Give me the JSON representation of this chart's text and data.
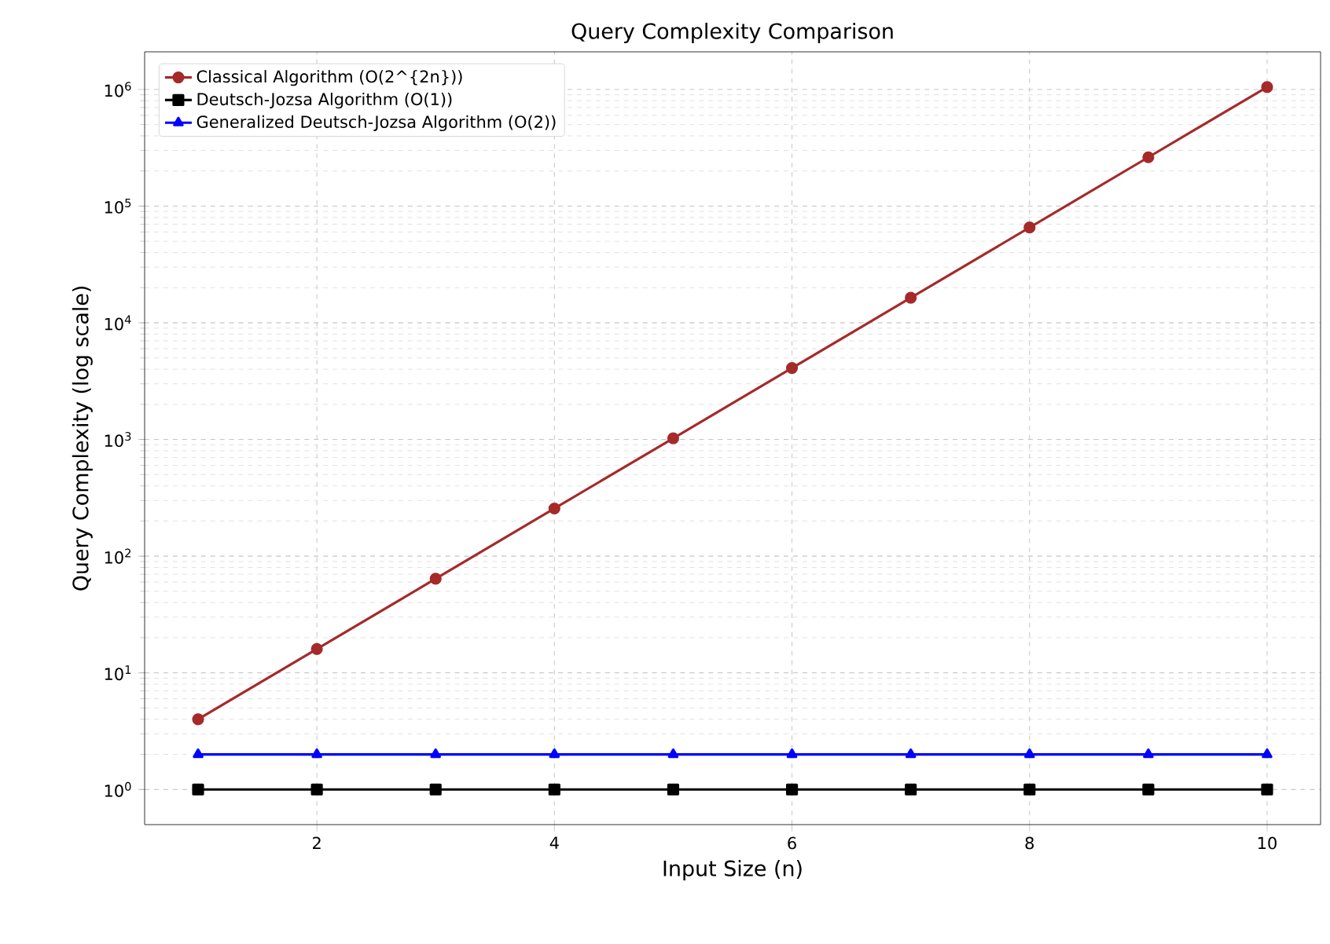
{
  "chart_data": {
    "type": "line",
    "title": "Query Complexity Comparison",
    "xlabel": "Input Size (n)",
    "ylabel": "Query Complexity (log scale)",
    "x": [
      1,
      2,
      3,
      4,
      5,
      6,
      7,
      8,
      9,
      10
    ],
    "series": [
      {
        "name": "Classical Algorithm (O(2^{2n}))",
        "color": "#a52a2a",
        "marker": "circle",
        "values": [
          4,
          16,
          64,
          256,
          1024,
          4096,
          16384,
          65536,
          262144,
          1048576
        ]
      },
      {
        "name": "Deutsch-Jozsa Algorithm (O(1))",
        "color": "#000000",
        "marker": "square",
        "values": [
          1,
          1,
          1,
          1,
          1,
          1,
          1,
          1,
          1,
          1
        ]
      },
      {
        "name": "Generalized Deutsch-Jozsa Algorithm (O(2))",
        "color": "#0000ff",
        "marker": "triangle",
        "values": [
          2,
          2,
          2,
          2,
          2,
          2,
          2,
          2,
          2,
          2
        ]
      }
    ],
    "log": "y",
    "xlim": [
      0.55,
      10.45
    ],
    "ylim": [
      0.5,
      2100000
    ],
    "xticks": [
      2,
      4,
      6,
      8,
      10
    ],
    "yticks": [
      {
        "value": 1,
        "label": "10$^{0}$"
      },
      {
        "value": 10,
        "label": "10$^{1}$"
      },
      {
        "value": 100,
        "label": "10$^{2}$"
      },
      {
        "value": 1000,
        "label": "10$^{3}$"
      },
      {
        "value": 10000,
        "label": "10$^{4}$"
      },
      {
        "value": 100000,
        "label": "10$^{5}$"
      },
      {
        "value": 1000000,
        "label": "10$^{6}$"
      }
    ],
    "grid": true,
    "legend": "top left",
    "line_style": "solid"
  }
}
